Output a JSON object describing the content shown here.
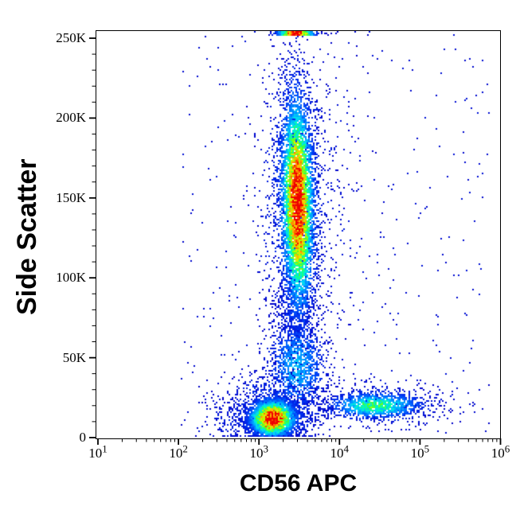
{
  "figure": {
    "x_axis_title": "CD56 APC",
    "y_axis_title": "Side Scatter"
  },
  "chart_data": {
    "type": "scatter",
    "variant": "flow-cytometry-pseudocolor-density",
    "title": "",
    "xlabel": "CD56 APC",
    "ylabel": "Side Scatter",
    "x_scale": "log10",
    "x_domain_log10": [
      0.975,
      6.0
    ],
    "y_domain": [
      0,
      255500
    ],
    "grid": false,
    "legend": "none",
    "x_ticks": [
      {
        "base": "10",
        "exponent": "1",
        "value": 10
      },
      {
        "base": "10",
        "exponent": "2",
        "value": 100
      },
      {
        "base": "10",
        "exponent": "3",
        "value": 1000
      },
      {
        "base": "10",
        "exponent": "4",
        "value": 10000
      },
      {
        "base": "10",
        "exponent": "5",
        "value": 100000
      },
      {
        "base": "10",
        "exponent": "6",
        "value": 1000000
      }
    ],
    "x_minor_ticks_per_decade": [
      2,
      3,
      4,
      5,
      6,
      7,
      8,
      9
    ],
    "y_ticks": [
      {
        "value": 0,
        "label": "0"
      },
      {
        "value": 50000,
        "label": "50K"
      },
      {
        "value": 100000,
        "label": "100K"
      },
      {
        "value": 150000,
        "label": "150K"
      },
      {
        "value": 200000,
        "label": "200K"
      },
      {
        "value": 250000,
        "label": "250K"
      }
    ],
    "y_minor_tick_step": 10000,
    "colormap": {
      "name": "jet-pseudocolor",
      "stops": [
        [
          0.0,
          "#0000c8"
        ],
        [
          0.12,
          "#0030f0"
        ],
        [
          0.22,
          "#0068ff"
        ],
        [
          0.32,
          "#00a4ff"
        ],
        [
          0.42,
          "#00dcf4"
        ],
        [
          0.5,
          "#00ffb4"
        ],
        [
          0.58,
          "#3cff3c"
        ],
        [
          0.66,
          "#a0ff00"
        ],
        [
          0.74,
          "#e6f000"
        ],
        [
          0.82,
          "#ffb000"
        ],
        [
          0.9,
          "#ff5c00"
        ],
        [
          1.0,
          "#ee0000"
        ]
      ]
    },
    "populations": [
      {
        "name": "background-scatter",
        "uniform": true,
        "n": 380,
        "x0_log": 2.0,
        "x1_log": 5.85,
        "y0": 500,
        "y1": 254000,
        "w": 0.04
      },
      {
        "name": "right-mid-scatter",
        "n": 150,
        "cx_log": 3.95,
        "cy": 150000,
        "sx_log": 0.25,
        "sy": 60000,
        "w": 0.05
      },
      {
        "name": "left-low-wedge",
        "n": 200,
        "cx_log": 2.75,
        "cy": 9000,
        "sx_log": 0.28,
        "sy": 9000,
        "w": 0.08
      },
      {
        "name": "granulocyte-fringe",
        "n": 950,
        "cx_log": 3.44,
        "cy": 150000,
        "sx_log": 0.23,
        "sy": 50000,
        "w": 0.16
      },
      {
        "name": "bridge-mid-ssc",
        "n": 380,
        "cx_log": 3.44,
        "cy": 82000,
        "sx_log": 0.13,
        "sy": 15000,
        "w": 0.14
      },
      {
        "name": "monocyte-debris-cloud",
        "n": 1250,
        "cx_log": 3.47,
        "cy": 44000,
        "sx_log": 0.18,
        "sy": 15000,
        "w": 0.34
      },
      {
        "name": "nk-cd56-bright-sparse",
        "n": 260,
        "cx_log": 4.55,
        "cy": 21000,
        "sx_log": 0.5,
        "sy": 8000,
        "w": 0.1
      },
      {
        "name": "nk-cd56-positive-band",
        "n": 1200,
        "cx_log": 4.45,
        "cy": 20000,
        "sx_log": 0.3,
        "sy": 4300,
        "w": 0.55
      },
      {
        "name": "lymphocyte-fringe",
        "n": 950,
        "cx_log": 3.2,
        "cy": 16000,
        "sx_log": 0.3,
        "sy": 12000,
        "w": 0.2
      },
      {
        "name": "lymphocytes",
        "n": 2700,
        "cx_log": 3.17,
        "cy": 12000,
        "sx_log": 0.15,
        "sy": 6200,
        "w": 1.05
      },
      {
        "name": "granulocytes",
        "n": 5200,
        "cx_log": 3.48,
        "cy": 147000,
        "sx_log": 0.105,
        "sy": 35000,
        "w": 1.03,
        "tilt": -0.012
      },
      {
        "name": "ssc-max-pileup-row",
        "edge": true,
        "n": 330,
        "cx_log": 3.46,
        "sx_log": 0.12,
        "w": 1.0
      }
    ]
  }
}
